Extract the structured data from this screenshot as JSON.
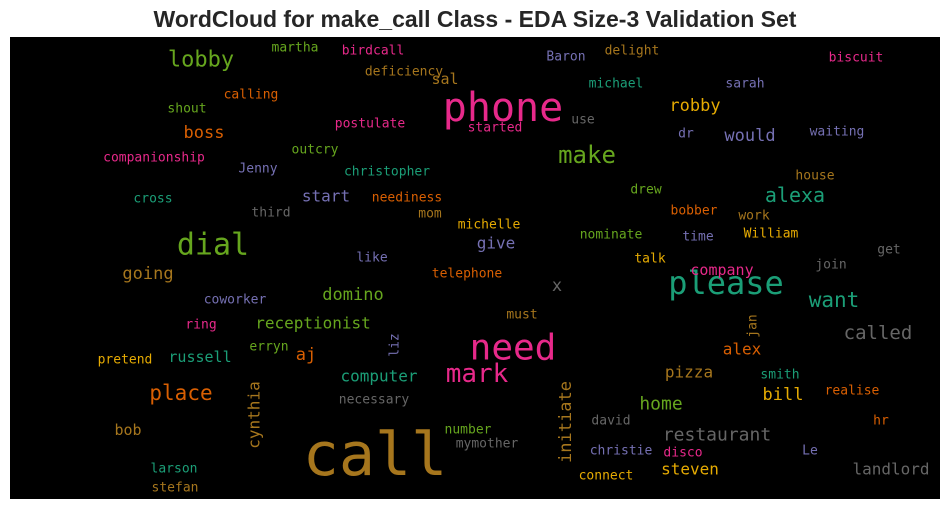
{
  "title": "WordCloud for make_call Class - EDA Size-3 Validation Set",
  "colors": {
    "background": "#000000",
    "pink": "#e7298a",
    "green": "#66a61e",
    "teal": "#1b9e77",
    "orange": "#d95f02",
    "purple": "#7570b3",
    "gold": "#e6ab02",
    "brown": "#a6761d",
    "gray": "#666666"
  },
  "chart_data": {
    "type": "wordcloud",
    "title": "WordCloud for make_call Class - EDA Size-3 Validation Set",
    "words": [
      {
        "text": "call",
        "size": 60,
        "color": "#a6761d"
      },
      {
        "text": "phone",
        "size": 40,
        "color": "#e7298a"
      },
      {
        "text": "need",
        "size": 36,
        "color": "#e7298a"
      },
      {
        "text": "please",
        "size": 32,
        "color": "#1b9e77"
      },
      {
        "text": "dial",
        "size": 30,
        "color": "#66a61e"
      },
      {
        "text": "mark",
        "size": 26,
        "color": "#e7298a"
      },
      {
        "text": "make",
        "size": 24,
        "color": "#66a61e"
      },
      {
        "text": "lobby",
        "size": 22,
        "color": "#66a61e"
      },
      {
        "text": "place",
        "size": 21,
        "color": "#d95f02"
      },
      {
        "text": "want",
        "size": 21,
        "color": "#1b9e77"
      },
      {
        "text": "alexa",
        "size": 20,
        "color": "#1b9e77"
      },
      {
        "text": "called",
        "size": 19,
        "color": "#666666"
      },
      {
        "text": "restaurant",
        "size": 18,
        "color": "#666666"
      },
      {
        "text": "home",
        "size": 18,
        "color": "#66a61e"
      },
      {
        "text": "initiate",
        "size": 17,
        "color": "#a6761d",
        "rotate": true
      },
      {
        "text": "domino",
        "size": 17,
        "color": "#66a61e"
      },
      {
        "text": "going",
        "size": 17,
        "color": "#a6761d"
      },
      {
        "text": "robby",
        "size": 17,
        "color": "#e6ab02"
      },
      {
        "text": "boss",
        "size": 17,
        "color": "#d95f02"
      },
      {
        "text": "would",
        "size": 17,
        "color": "#7570b3"
      },
      {
        "text": "landlord",
        "size": 16,
        "color": "#666666"
      },
      {
        "text": "aj",
        "size": 17,
        "color": "#d95f02"
      },
      {
        "text": "bill",
        "size": 17,
        "color": "#e6ab02"
      },
      {
        "text": "start",
        "size": 16,
        "color": "#7570b3"
      },
      {
        "text": "give",
        "size": 16,
        "color": "#7570b3"
      },
      {
        "text": "cynthia",
        "size": 16,
        "color": "#a6761d",
        "rotate": true
      },
      {
        "text": "steven",
        "size": 16,
        "color": "#e6ab02"
      },
      {
        "text": "pizza",
        "size": 16,
        "color": "#a6761d"
      },
      {
        "text": "alex",
        "size": 16,
        "color": "#d95f02"
      },
      {
        "text": "receptionist",
        "size": 16,
        "color": "#66a61e"
      },
      {
        "text": "computer",
        "size": 16,
        "color": "#1b9e77"
      },
      {
        "text": "company",
        "size": 15,
        "color": "#e7298a"
      },
      {
        "text": "russell",
        "size": 15,
        "color": "#1b9e77"
      },
      {
        "text": "bob",
        "size": 15,
        "color": "#a6761d"
      },
      {
        "text": "x",
        "size": 17,
        "color": "#666666"
      },
      {
        "text": "sal",
        "size": 15,
        "color": "#a6761d"
      },
      {
        "text": "companionship",
        "size": 13,
        "color": "#e7298a"
      },
      {
        "text": "christopher",
        "size": 13,
        "color": "#1b9e77"
      },
      {
        "text": "neediness",
        "size": 13,
        "color": "#d95f02"
      },
      {
        "text": "postulate",
        "size": 13,
        "color": "#e7298a"
      },
      {
        "text": "michael",
        "size": 13,
        "color": "#1b9e77"
      },
      {
        "text": "deficiency",
        "size": 13,
        "color": "#a6761d"
      },
      {
        "text": "birdcall",
        "size": 13,
        "color": "#e7298a"
      },
      {
        "text": "martha",
        "size": 13,
        "color": "#66a61e"
      },
      {
        "text": "Baron",
        "size": 13,
        "color": "#7570b3"
      },
      {
        "text": "delight",
        "size": 13,
        "color": "#a6761d"
      },
      {
        "text": "biscuit",
        "size": 13,
        "color": "#e7298a"
      },
      {
        "text": "sarah",
        "size": 13,
        "color": "#7570b3"
      },
      {
        "text": "shout",
        "size": 13,
        "color": "#66a61e"
      },
      {
        "text": "calling",
        "size": 13,
        "color": "#d95f02"
      },
      {
        "text": "started",
        "size": 13,
        "color": "#e7298a"
      },
      {
        "text": "use",
        "size": 13,
        "color": "#666666"
      },
      {
        "text": "dr",
        "size": 13,
        "color": "#7570b3"
      },
      {
        "text": "waiting",
        "size": 13,
        "color": "#7570b3"
      },
      {
        "text": "Jenny",
        "size": 13,
        "color": "#7570b3"
      },
      {
        "text": "outcry",
        "size": 13,
        "color": "#66a61e"
      },
      {
        "text": "house",
        "size": 13,
        "color": "#a6761d"
      },
      {
        "text": "cross",
        "size": 13,
        "color": "#1b9e77"
      },
      {
        "text": "third",
        "size": 13,
        "color": "#666666"
      },
      {
        "text": "mom",
        "size": 13,
        "color": "#a6761d"
      },
      {
        "text": "michelle",
        "size": 13,
        "color": "#e6ab02"
      },
      {
        "text": "drew",
        "size": 13,
        "color": "#66a61e"
      },
      {
        "text": "bobber",
        "size": 13,
        "color": "#d95f02"
      },
      {
        "text": "work",
        "size": 13,
        "color": "#a6761d"
      },
      {
        "text": "nominate",
        "size": 13,
        "color": "#66a61e"
      },
      {
        "text": "time",
        "size": 13,
        "color": "#7570b3"
      },
      {
        "text": "William",
        "size": 13,
        "color": "#e6ab02"
      },
      {
        "text": "get",
        "size": 13,
        "color": "#666666"
      },
      {
        "text": "like",
        "size": 13,
        "color": "#7570b3"
      },
      {
        "text": "telephone",
        "size": 13,
        "color": "#d95f02"
      },
      {
        "text": "talk",
        "size": 13,
        "color": "#e6ab02"
      },
      {
        "text": "join",
        "size": 13,
        "color": "#666666"
      },
      {
        "text": "coworker",
        "size": 13,
        "color": "#7570b3"
      },
      {
        "text": "ring",
        "size": 13,
        "color": "#e7298a"
      },
      {
        "text": "must",
        "size": 13,
        "color": "#a6761d"
      },
      {
        "text": "jan",
        "size": 13,
        "color": "#a6761d",
        "rotate": true
      },
      {
        "text": "liz",
        "size": 13,
        "color": "#7570b3",
        "rotate": true
      },
      {
        "text": "erryn",
        "size": 13,
        "color": "#66a61e"
      },
      {
        "text": "pretend",
        "size": 13,
        "color": "#e6ab02"
      },
      {
        "text": "smith",
        "size": 13,
        "color": "#1b9e77"
      },
      {
        "text": "realise",
        "size": 13,
        "color": "#d95f02"
      },
      {
        "text": "necessary",
        "size": 13,
        "color": "#666666"
      },
      {
        "text": "david",
        "size": 13,
        "color": "#666666"
      },
      {
        "text": "hr",
        "size": 13,
        "color": "#d95f02"
      },
      {
        "text": "number",
        "size": 13,
        "color": "#66a61e"
      },
      {
        "text": "mymother",
        "size": 13,
        "color": "#666666"
      },
      {
        "text": "christie",
        "size": 13,
        "color": "#7570b3"
      },
      {
        "text": "disco",
        "size": 13,
        "color": "#e7298a"
      },
      {
        "text": "Le",
        "size": 13,
        "color": "#7570b3"
      },
      {
        "text": "larson",
        "size": 13,
        "color": "#1b9e77"
      },
      {
        "text": "stefan",
        "size": 13,
        "color": "#a6761d"
      },
      {
        "text": "connect",
        "size": 13,
        "color": "#e6ab02"
      }
    ]
  }
}
